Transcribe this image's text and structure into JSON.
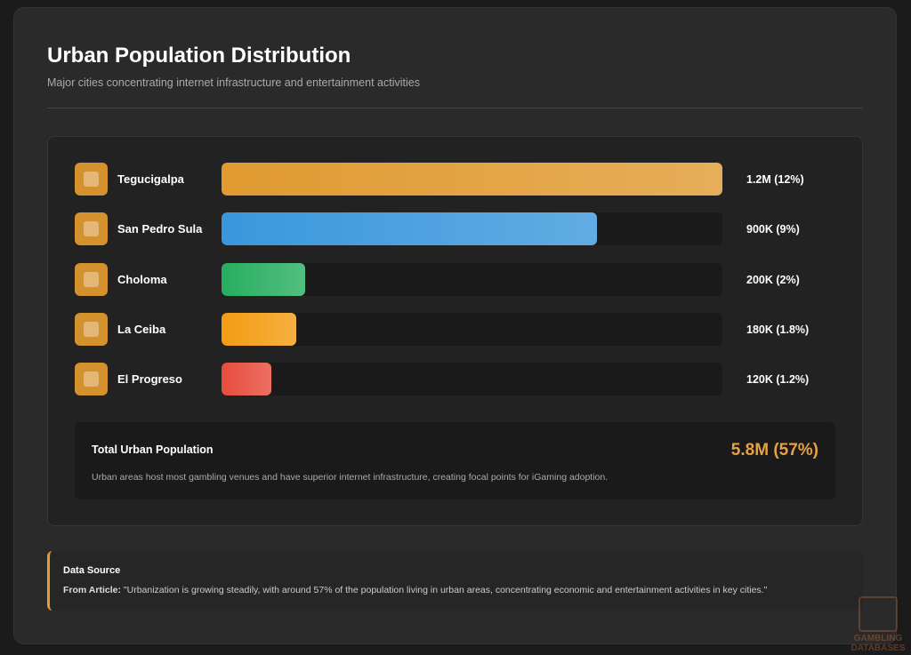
{
  "chart_data": {
    "type": "bar",
    "orientation": "horizontal",
    "title": "Urban Population Distribution",
    "subtitle": "Major cities concentrating internet infrastructure and entertainment activities",
    "categories": [
      "Tegucigalpa",
      "San Pedro Sula",
      "Choloma",
      "La Ceiba",
      "El Progreso"
    ],
    "values": [
      1200000,
      900000,
      200000,
      180000,
      120000
    ],
    "value_labels": [
      "1.2M (12%)",
      "900K (9%)",
      "200K (2%)",
      "180K (1.8%)",
      "120K (1.2%)"
    ],
    "colors": [
      "#e09a30",
      "#3a97dc",
      "#27ae60",
      "#f39c12",
      "#e74c3c"
    ],
    "xlim": [
      0,
      1200000
    ]
  },
  "summary": {
    "label": "Total Urban Population",
    "value": "5.8M (57%)",
    "note": "Urban areas host most gambling venues and have superior internet infrastructure, creating focal points for iGaming adoption."
  },
  "source": {
    "title": "Data Source",
    "prefix": "From Article:",
    "quote": "\"Urbanization is growing steadily, with around 57% of the population living in urban areas, concentrating economic and entertainment activities in key cities.\""
  },
  "watermark": "GAMBLING DATABASES"
}
